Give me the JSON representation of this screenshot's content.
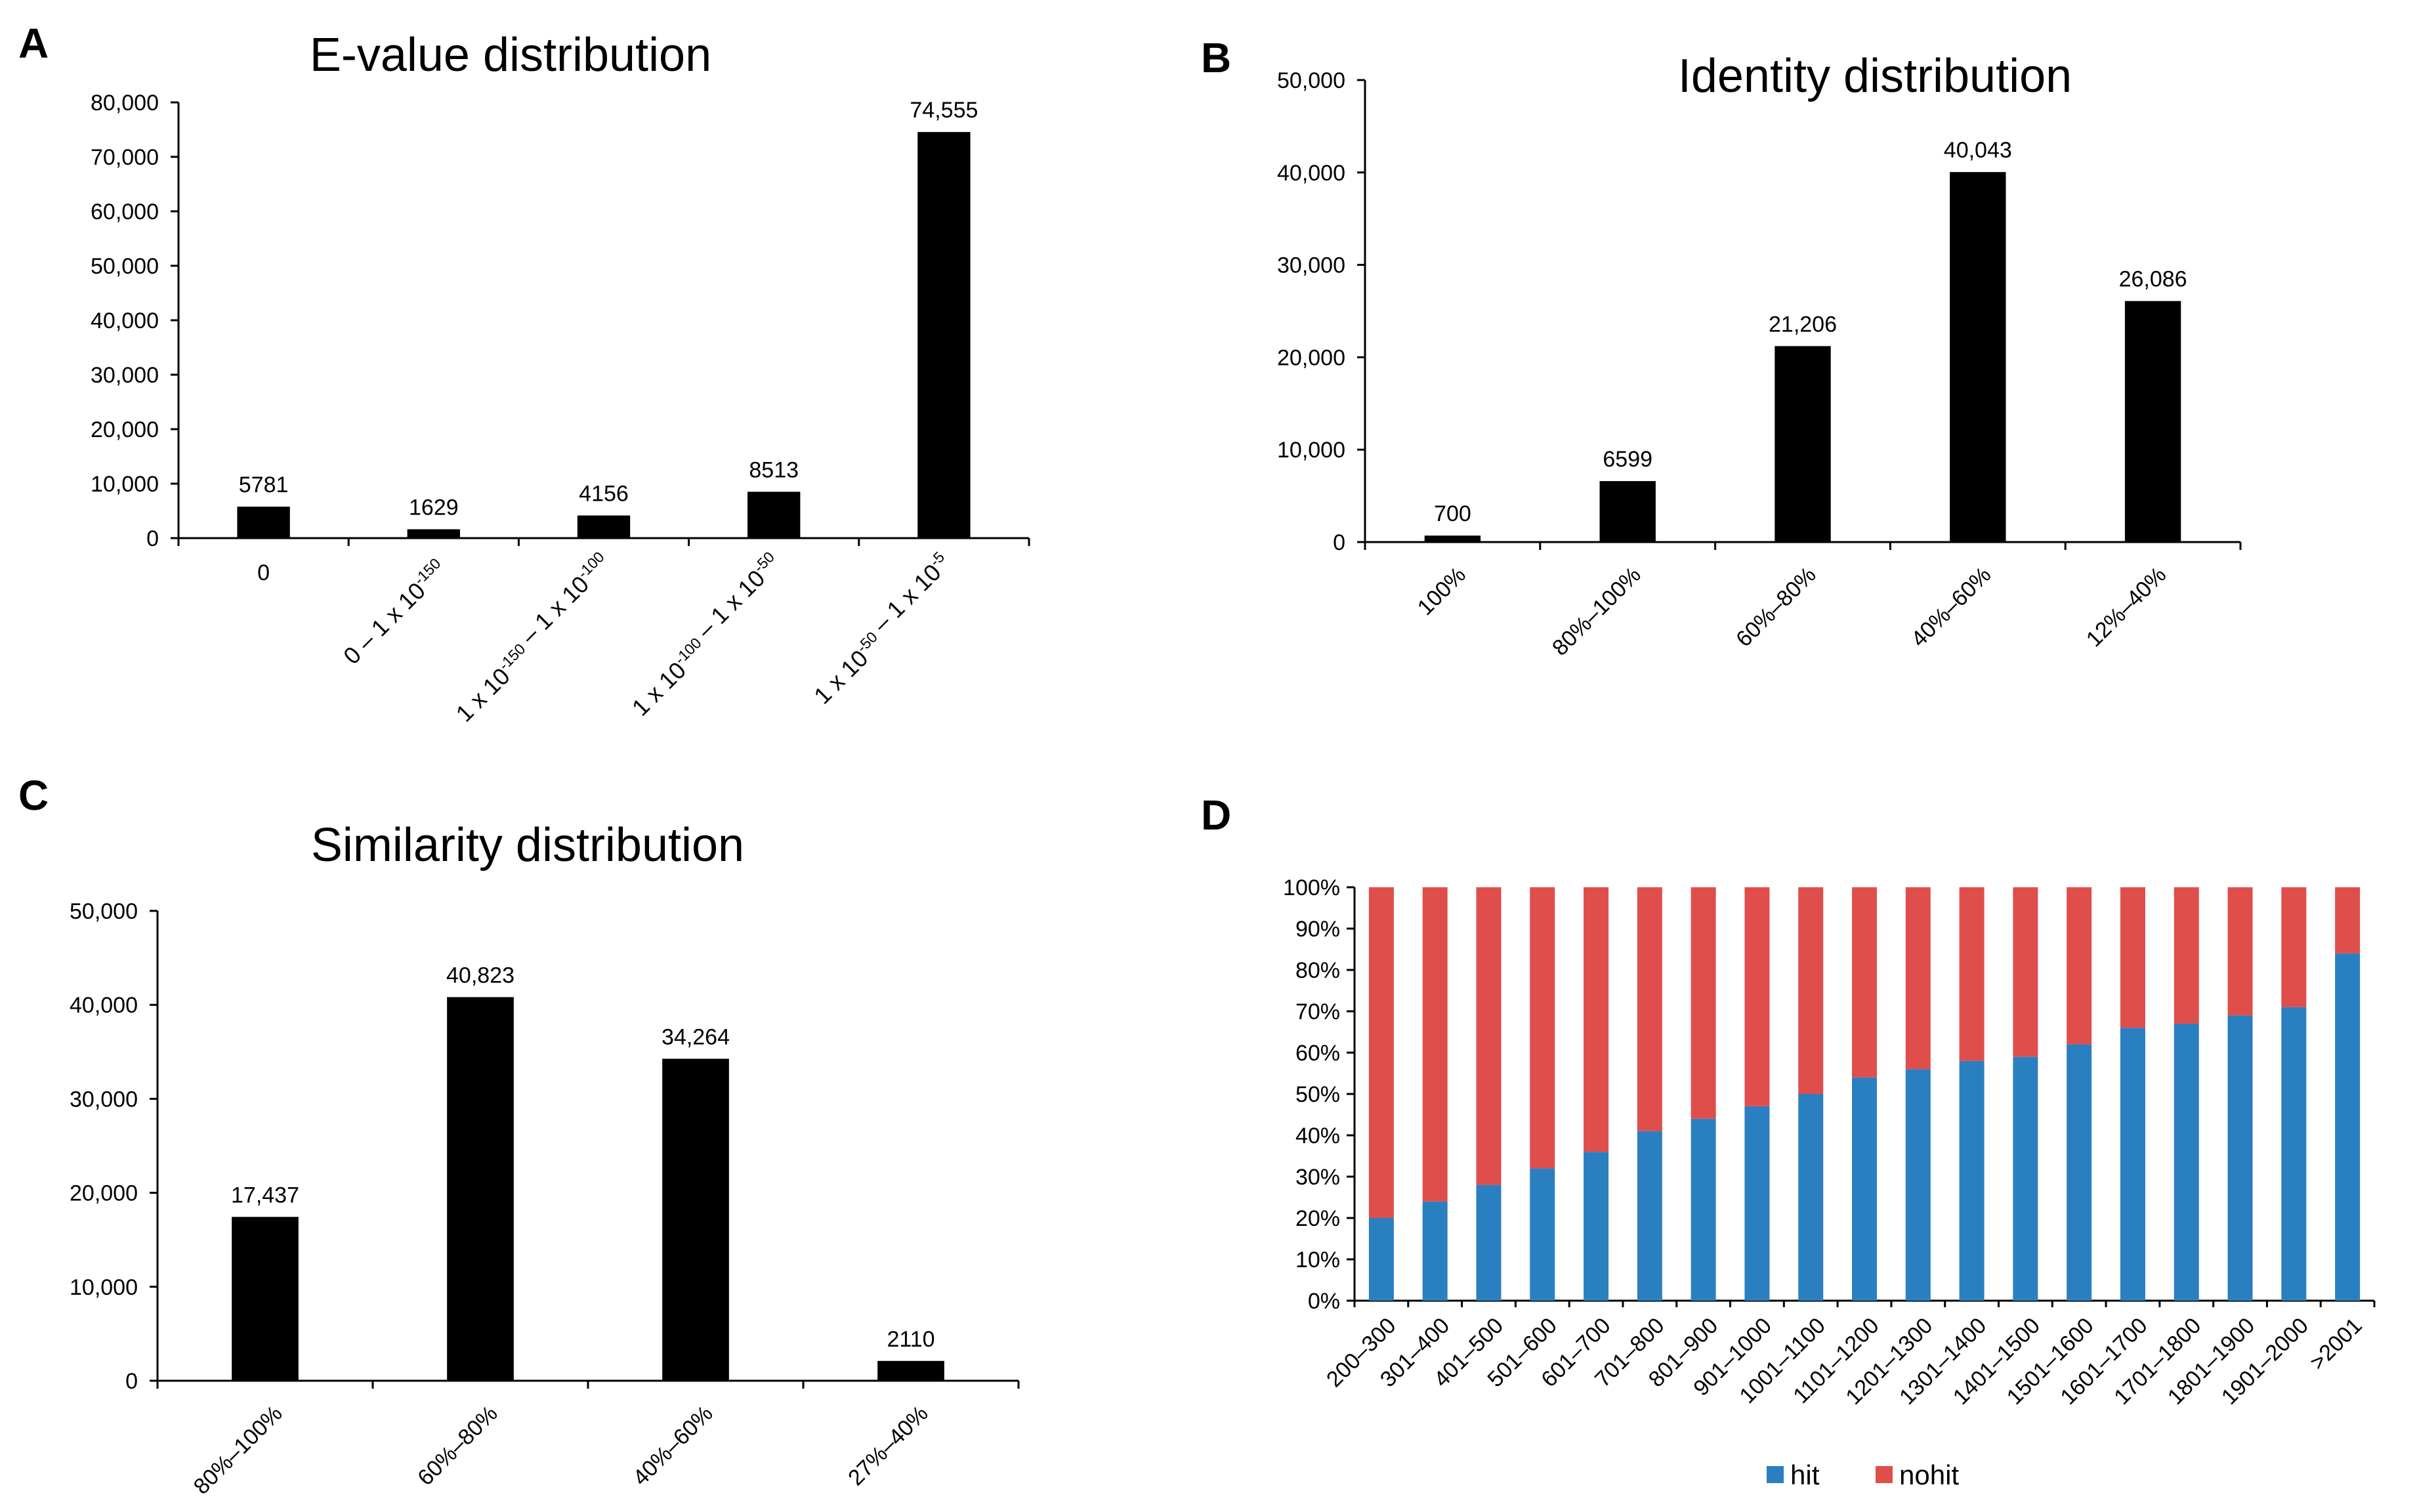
{
  "chart_data": [
    {
      "panel": "A",
      "type": "bar",
      "title": "E-value distribution",
      "xlabel": "",
      "ylabel": "",
      "ylim": [
        0,
        80000
      ],
      "yticks": [
        "0",
        "10,000",
        "20,000",
        "30,000",
        "40,000",
        "50,000",
        "60,000",
        "70,000",
        "80,000"
      ],
      "categories": [
        "0",
        "0 – 1 x 10-150",
        "1 x 10-150 – 1 x 10-100",
        "1 x 10-100 – 1 x 10-50",
        "1 x 10-50 – 1 x 10-5"
      ],
      "values": [
        5781,
        1629,
        4156,
        8513,
        74555
      ],
      "value_labels": [
        "5781",
        "1629",
        "4156",
        "8513",
        "74,555"
      ],
      "color": "#000000"
    },
    {
      "panel": "B",
      "type": "bar",
      "title": "Identity distribution",
      "xlabel": "",
      "ylabel": "",
      "ylim": [
        0,
        50000
      ],
      "yticks": [
        "0",
        "10,000",
        "20,000",
        "30,000",
        "40,000",
        "50,000"
      ],
      "categories": [
        "100%",
        "80%–100%",
        "60%–80%",
        "40%–60%",
        "12%–40%"
      ],
      "values": [
        700,
        6599,
        21206,
        40043,
        26086
      ],
      "value_labels": [
        "700",
        "6599",
        "21,206",
        "40,043",
        "26,086"
      ],
      "color": "#000000"
    },
    {
      "panel": "C",
      "type": "bar",
      "title": "Similarity distribution",
      "xlabel": "",
      "ylabel": "",
      "ylim": [
        0,
        50000
      ],
      "yticks": [
        "0",
        "10,000",
        "20,000",
        "30,000",
        "40,000",
        "50,000"
      ],
      "categories": [
        "80%–100%",
        "60%–80%",
        "40%–60%",
        "27%–40%"
      ],
      "values": [
        17437,
        40823,
        34264,
        2110
      ],
      "value_labels": [
        "17,437",
        "40,823",
        "34,264",
        "2110"
      ],
      "color": "#000000"
    },
    {
      "panel": "D",
      "type": "bar",
      "stacked": true,
      "title": "",
      "xlabel": "",
      "ylabel": "",
      "ylim": [
        0,
        100
      ],
      "yticks": [
        "0%",
        "10%",
        "20%",
        "30%",
        "40%",
        "50%",
        "60%",
        "70%",
        "80%",
        "90%",
        "100%"
      ],
      "categories": [
        "200–300",
        "301–400",
        "401–500",
        "501–600",
        "601–700",
        "701–800",
        "801–900",
        "901–1000",
        "1001–1100",
        "1101–1200",
        "1201–1300",
        "1301–1400",
        "1401–1500",
        "1501–1600",
        "1601–1700",
        "1701–1800",
        "1801–1900",
        "1901–2000",
        ">2001"
      ],
      "series": [
        {
          "name": "hit",
          "color": "#2a7fc1",
          "values": [
            20,
            24,
            28,
            32,
            36,
            41,
            44,
            47,
            50,
            54,
            56,
            58,
            59,
            62,
            66,
            67,
            69,
            71,
            84
          ]
        },
        {
          "name": "nohit",
          "color": "#e04e4c",
          "values": [
            80,
            76,
            72,
            68,
            64,
            59,
            56,
            53,
            50,
            46,
            44,
            42,
            41,
            38,
            34,
            33,
            31,
            29,
            16
          ]
        }
      ],
      "legend": "bottom"
    }
  ]
}
